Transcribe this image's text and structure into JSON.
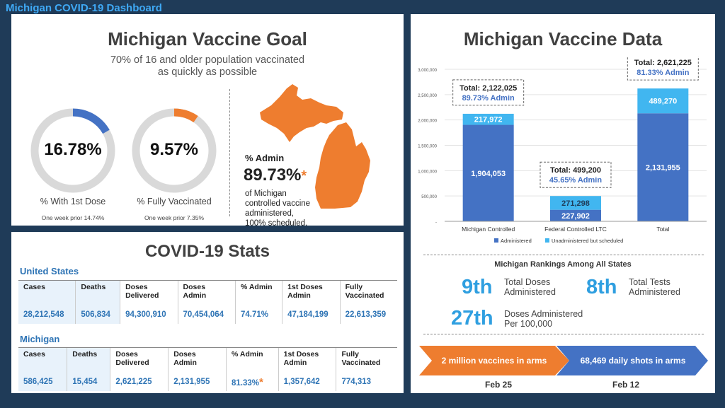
{
  "dashboard_title": "Michigan COVID-19 Dashboard",
  "goal": {
    "title": "Michigan Vaccine Goal",
    "subtitle_1": "70% of 16 and older population vaccinated",
    "subtitle_2": "as quickly as possible",
    "first_dose": {
      "value_text": "16.78%",
      "fraction": 0.1678,
      "label": "% With 1st Dose",
      "note": "One week prior 14.74%"
    },
    "fully": {
      "value_text": "9.57%",
      "fraction": 0.0957,
      "label": "% Fully Vaccinated",
      "note": "One week prior 7.35%"
    },
    "admin_label": "% Admin",
    "admin_value": "89.73%",
    "asterisk": "*",
    "admin_note_1": "of Michigan",
    "admin_note_2": "controlled vaccine",
    "admin_note_3": "administered,",
    "admin_note_4": "100% scheduled."
  },
  "stats": {
    "title": "COVID-19 Stats",
    "us_label": "United States",
    "mi_label": "Michigan",
    "headers": [
      [
        "Cases",
        ""
      ],
      [
        "Deaths",
        ""
      ],
      [
        "Doses",
        "Delivered"
      ],
      [
        "Doses",
        "Admin"
      ],
      [
        "% Admin",
        ""
      ],
      [
        "1st Doses",
        "Admin"
      ],
      [
        "Fully",
        "Vaccinated"
      ]
    ],
    "us": [
      "28,212,548",
      "506,834",
      "94,300,910",
      "70,454,064",
      "74.71%",
      "47,184,199",
      "22,613,359"
    ],
    "mi": [
      "586,425",
      "15,454",
      "2,621,225",
      "2,131,955",
      "81.33%",
      "1,357,642",
      "774,313"
    ],
    "asterisk": "*"
  },
  "vdata": {
    "title": "Michigan Vaccine Data",
    "rank_title": "Michigan Rankings Among All States",
    "rankings": [
      {
        "num": "9th",
        "line1": "Total Doses",
        "line2": "Administered"
      },
      {
        "num": "8th",
        "line1": "Total Tests",
        "line2": "Administered"
      },
      {
        "num": "27th",
        "line1": "Doses Administered",
        "line2": "Per 100,000"
      }
    ],
    "arrow1": "2 million vaccines in arms",
    "arrow2": "68,469 daily shots in arms",
    "date1": "Feb 25",
    "date2": "Feb 12"
  },
  "chart_data": [
    {
      "type": "bar",
      "stacked": true,
      "categories": [
        "Michigan Controlled",
        "Federal Controlled LTC",
        "Total"
      ],
      "series": [
        {
          "name": "Administered",
          "values": [
            1904053,
            227902,
            2131955
          ],
          "labels": [
            "1,904,053",
            "227,902",
            "2,131,955"
          ],
          "color": "#4472c4"
        },
        {
          "name": "Unadministered but scheduled",
          "values": [
            217972,
            271298,
            489270
          ],
          "labels": [
            "217,972",
            "271,298",
            "489,270"
          ],
          "color": "#41b6f0"
        }
      ],
      "callouts": [
        {
          "line1": "Total: 2,122,025",
          "line2": "89.73% Admin"
        },
        {
          "line1": "Total: 499,200",
          "line2": "45.65% Admin"
        },
        {
          "line1": "Total: 2,621,225",
          "line2": "81.33% Admin"
        }
      ],
      "yticks": [
        "-",
        "500,000",
        "1,000,000",
        "1,500,000",
        "2,000,000",
        "2,500,000",
        "3,000,000"
      ],
      "ylim": [
        0,
        3000000
      ],
      "grid": true,
      "legend": "bottom"
    },
    {
      "type": "pie",
      "title": "% With 1st Dose",
      "values": [
        16.78,
        83.22
      ],
      "colors": [
        "#4472c4",
        "#d9d9d9"
      ]
    },
    {
      "type": "pie",
      "title": "% Fully Vaccinated",
      "values": [
        9.57,
        90.43
      ],
      "colors": [
        "#ee7d2f",
        "#d9d9d9"
      ]
    }
  ]
}
